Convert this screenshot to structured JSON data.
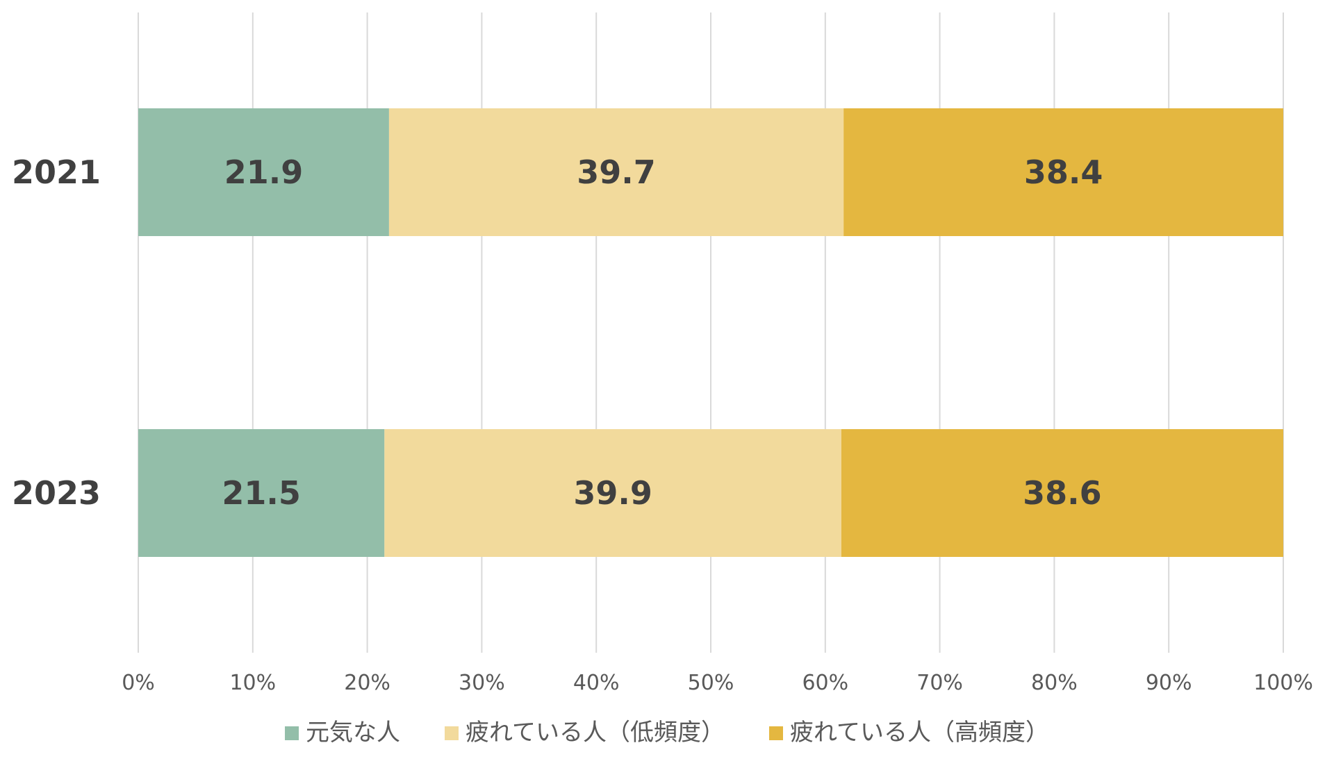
{
  "chart_data": {
    "type": "bar",
    "orientation": "horizontal",
    "stacked": "percent",
    "categories": [
      "2021",
      "2023"
    ],
    "series": [
      {
        "name": "元気な人",
        "values": [
          21.9,
          21.5
        ],
        "color": "#93BEA9"
      },
      {
        "name": "疲れている人（低頻度）",
        "values": [
          39.7,
          39.9
        ],
        "color": "#F2DA9C"
      },
      {
        "name": "疲れている人（高頻度）",
        "values": [
          38.4,
          38.6
        ],
        "color": "#E4B740"
      }
    ],
    "xlim": [
      0,
      100
    ],
    "x_ticks": [
      "0%",
      "10%",
      "20%",
      "30%",
      "40%",
      "50%",
      "60%",
      "70%",
      "80%",
      "90%",
      "100%"
    ],
    "grid": true,
    "legend_position": "bottom",
    "title": "",
    "xlabel": "",
    "ylabel": ""
  }
}
